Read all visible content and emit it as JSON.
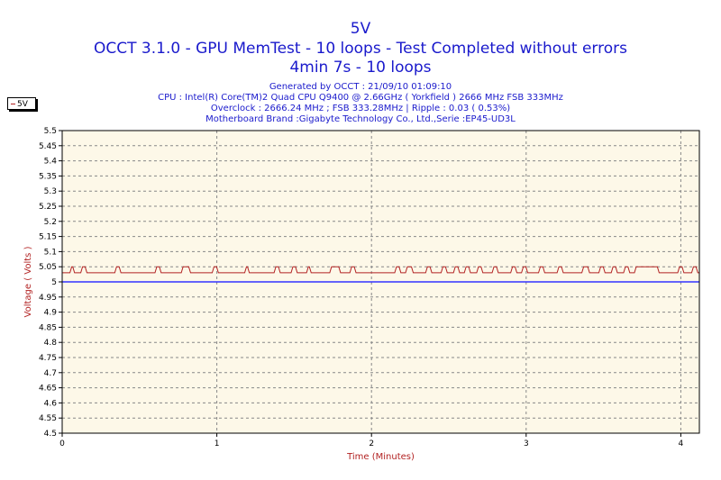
{
  "header": {
    "title": "5V",
    "subtitle": "OCCT 3.1.0 - GPU MemTest - 10 loops - Test Completed without errors",
    "duration": "4min 7s - 10 loops",
    "generated": "Generated by OCCT : 21/09/10 01:09:10",
    "cpu": "CPU : Intel(R) Core(TM)2 Quad CPU Q9400 @ 2.66GHz ( Yorkfield ) 2666 MHz FSB 333MHz",
    "overclock": "Overclock : 2666.24 MHz ; FSB 333.28MHz | Ripple : 0.03 ( 0.53%)",
    "motherboard": "Motherboard Brand :Gigabyte Technology Co., Ltd.,Serie :EP45-UD3L"
  },
  "legend": {
    "label": "5V"
  },
  "colors": {
    "series": "#b22222",
    "reference": "#3333ff",
    "plot_bg": "#fdf8e8",
    "grid": "#888888",
    "title": "#1a1acc"
  },
  "chart_data": {
    "type": "line",
    "xlabel": "Time (Minutes)",
    "ylabel": "Voltage ( Volts )",
    "xlim": [
      0,
      4.12
    ],
    "ylim": [
      4.5,
      5.5
    ],
    "x_ticks": [
      "0",
      "1",
      "2",
      "3",
      "4"
    ],
    "y_ticks": [
      "5.5",
      "5.45",
      "5.4",
      "5.35",
      "5.3",
      "5.25",
      "5.2",
      "5.15",
      "5.1",
      "5.05",
      "5",
      "4.95",
      "4.9",
      "4.85",
      "4.8",
      "4.75",
      "4.7",
      "4.65",
      "4.6",
      "4.55",
      "4.5"
    ],
    "grid": true,
    "series": [
      {
        "name": "5V",
        "y_low": 5.03,
        "y_high": 5.05,
        "high_intervals": [
          [
            0.05,
            0.08
          ],
          [
            0.12,
            0.16
          ],
          [
            0.34,
            0.38
          ],
          [
            0.6,
            0.64
          ],
          [
            0.77,
            0.83
          ],
          [
            0.97,
            1.01
          ],
          [
            1.18,
            1.21
          ],
          [
            1.37,
            1.41
          ],
          [
            1.48,
            1.52
          ],
          [
            1.58,
            1.61
          ],
          [
            1.73,
            1.8
          ],
          [
            1.86,
            1.9
          ],
          [
            2.15,
            2.19
          ],
          [
            2.22,
            2.27
          ],
          [
            2.35,
            2.39
          ],
          [
            2.45,
            2.49
          ],
          [
            2.53,
            2.57
          ],
          [
            2.6,
            2.64
          ],
          [
            2.68,
            2.72
          ],
          [
            2.78,
            2.82
          ],
          [
            2.9,
            2.94
          ],
          [
            2.97,
            3.01
          ],
          [
            3.08,
            3.12
          ],
          [
            3.2,
            3.24
          ],
          [
            3.36,
            3.41
          ],
          [
            3.47,
            3.51
          ],
          [
            3.55,
            3.59
          ],
          [
            3.63,
            3.67
          ],
          [
            3.7,
            3.86
          ],
          [
            3.98,
            4.02
          ],
          [
            4.07,
            4.11
          ]
        ]
      },
      {
        "values": [
          5.0,
          5.0
        ]
      }
    ]
  }
}
